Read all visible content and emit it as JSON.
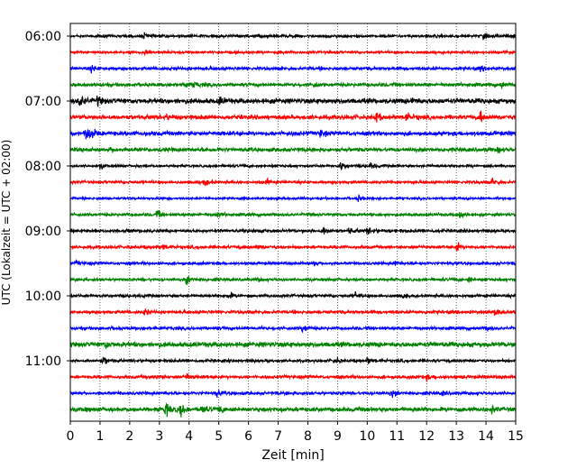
{
  "chart_data": {
    "type": "line",
    "title": "",
    "xlabel": "Zeit  [min]",
    "ylabel": "UTC (Lokalzeit = UTC + 02:00)",
    "xlim": [
      0,
      15
    ],
    "x_ticks": [
      0,
      1,
      2,
      3,
      4,
      5,
      6,
      7,
      8,
      9,
      10,
      11,
      12,
      13,
      14,
      15
    ],
    "grid": {
      "x": true,
      "style": "dotted"
    },
    "y_tick_labels": [
      "06:00",
      "07:00",
      "08:00",
      "09:00",
      "10:00",
      "11:00"
    ],
    "colors": [
      "#000000",
      "#ff0000",
      "#0000ff",
      "#008000"
    ],
    "traces": [
      {
        "start": "06:00",
        "color": "#000000",
        "noise": 0.2,
        "events": [
          [
            2.5,
            0.45
          ],
          [
            13.9,
            0.4
          ]
        ]
      },
      {
        "start": "06:15",
        "color": "#ff0000",
        "noise": 0.18,
        "events": [
          [
            2.5,
            0.55
          ],
          [
            7.0,
            0.25
          ]
        ]
      },
      {
        "start": "06:30",
        "color": "#0000ff",
        "noise": 0.22,
        "events": [
          [
            0.7,
            0.4
          ],
          [
            13.8,
            0.3
          ]
        ]
      },
      {
        "start": "06:45",
        "color": "#008000",
        "noise": 0.25,
        "events": [
          [
            3.8,
            0.55
          ],
          [
            4.1,
            0.45
          ],
          [
            8.2,
            0.35
          ],
          [
            14.5,
            0.45
          ]
        ]
      },
      {
        "start": "07:00",
        "color": "#000000",
        "noise": 0.35,
        "events": [
          [
            0.3,
            1.0
          ],
          [
            0.9,
            0.6
          ],
          [
            5.0,
            0.6
          ],
          [
            11.5,
            0.4
          ]
        ]
      },
      {
        "start": "07:15",
        "color": "#ff0000",
        "noise": 0.3,
        "events": [
          [
            3.2,
            0.45
          ],
          [
            10.3,
            0.7
          ],
          [
            11.3,
            0.8
          ],
          [
            13.8,
            0.9
          ]
        ]
      },
      {
        "start": "07:30",
        "color": "#0000ff",
        "noise": 0.3,
        "events": [
          [
            0.5,
            1.1
          ],
          [
            0.7,
            0.9
          ],
          [
            8.4,
            0.5
          ]
        ]
      },
      {
        "start": "07:45",
        "color": "#008000",
        "noise": 0.28,
        "events": [
          [
            1.3,
            0.3
          ],
          [
            4.6,
            0.3
          ],
          [
            14.4,
            0.35
          ]
        ]
      },
      {
        "start": "08:00",
        "color": "#000000",
        "noise": 0.18,
        "events": [
          [
            1.0,
            0.4
          ],
          [
            9.1,
            0.6
          ],
          [
            10.1,
            0.4
          ]
        ]
      },
      {
        "start": "08:15",
        "color": "#ff0000",
        "noise": 0.2,
        "events": [
          [
            4.5,
            0.55
          ],
          [
            6.6,
            0.4
          ],
          [
            14.2,
            0.7
          ]
        ]
      },
      {
        "start": "08:30",
        "color": "#0000ff",
        "noise": 0.16,
        "events": [
          [
            9.7,
            0.5
          ]
        ]
      },
      {
        "start": "08:45",
        "color": "#008000",
        "noise": 0.22,
        "events": [
          [
            2.9,
            0.55
          ],
          [
            4.9,
            0.35
          ],
          [
            13.1,
            0.55
          ]
        ]
      },
      {
        "start": "09:00",
        "color": "#000000",
        "noise": 0.22,
        "events": [
          [
            8.5,
            0.6
          ],
          [
            9.4,
            0.5
          ],
          [
            10.0,
            0.5
          ]
        ]
      },
      {
        "start": "09:15",
        "color": "#ff0000",
        "noise": 0.22,
        "events": [
          [
            3.1,
            0.4
          ],
          [
            6.3,
            0.35
          ],
          [
            13.0,
            0.65
          ]
        ]
      },
      {
        "start": "09:30",
        "color": "#0000ff",
        "noise": 0.2,
        "events": [
          [
            0.2,
            0.35
          ],
          [
            8.2,
            0.45
          ],
          [
            10.9,
            0.35
          ]
        ]
      },
      {
        "start": "09:45",
        "color": "#008000",
        "noise": 0.2,
        "events": [
          [
            3.9,
            0.7
          ],
          [
            6.3,
            0.25
          ],
          [
            13.4,
            0.4
          ]
        ]
      },
      {
        "start": "10:00",
        "color": "#000000",
        "noise": 0.2,
        "events": [
          [
            5.3,
            0.6
          ],
          [
            9.6,
            0.4
          ],
          [
            11.2,
            0.4
          ]
        ]
      },
      {
        "start": "10:15",
        "color": "#ff0000",
        "noise": 0.22,
        "events": [
          [
            2.5,
            0.55
          ],
          [
            14.3,
            0.55
          ]
        ]
      },
      {
        "start": "10:30",
        "color": "#0000ff",
        "noise": 0.22,
        "events": [
          [
            7.8,
            0.55
          ],
          [
            14.0,
            0.35
          ]
        ]
      },
      {
        "start": "10:45",
        "color": "#008000",
        "noise": 0.35,
        "events": [
          [
            1.2,
            0.55
          ]
        ]
      },
      {
        "start": "11:00",
        "color": "#000000",
        "noise": 0.2,
        "events": [
          [
            1.1,
            0.65
          ],
          [
            8.9,
            0.5
          ],
          [
            10.0,
            0.4
          ]
        ]
      },
      {
        "start": "11:15",
        "color": "#ff0000",
        "noise": 0.22,
        "events": [
          [
            2.9,
            0.45
          ],
          [
            3.9,
            0.55
          ],
          [
            12.0,
            0.35
          ]
        ]
      },
      {
        "start": "11:30",
        "color": "#0000ff",
        "noise": 0.22,
        "events": [
          [
            4.9,
            0.55
          ],
          [
            10.8,
            0.6
          ],
          [
            12.5,
            0.35
          ]
        ]
      },
      {
        "start": "11:45",
        "color": "#008000",
        "noise": 0.3,
        "events": [
          [
            3.2,
            1.0
          ],
          [
            3.7,
            0.85
          ],
          [
            4.4,
            0.7
          ],
          [
            5.0,
            0.5
          ],
          [
            14.2,
            0.4
          ]
        ]
      }
    ]
  }
}
